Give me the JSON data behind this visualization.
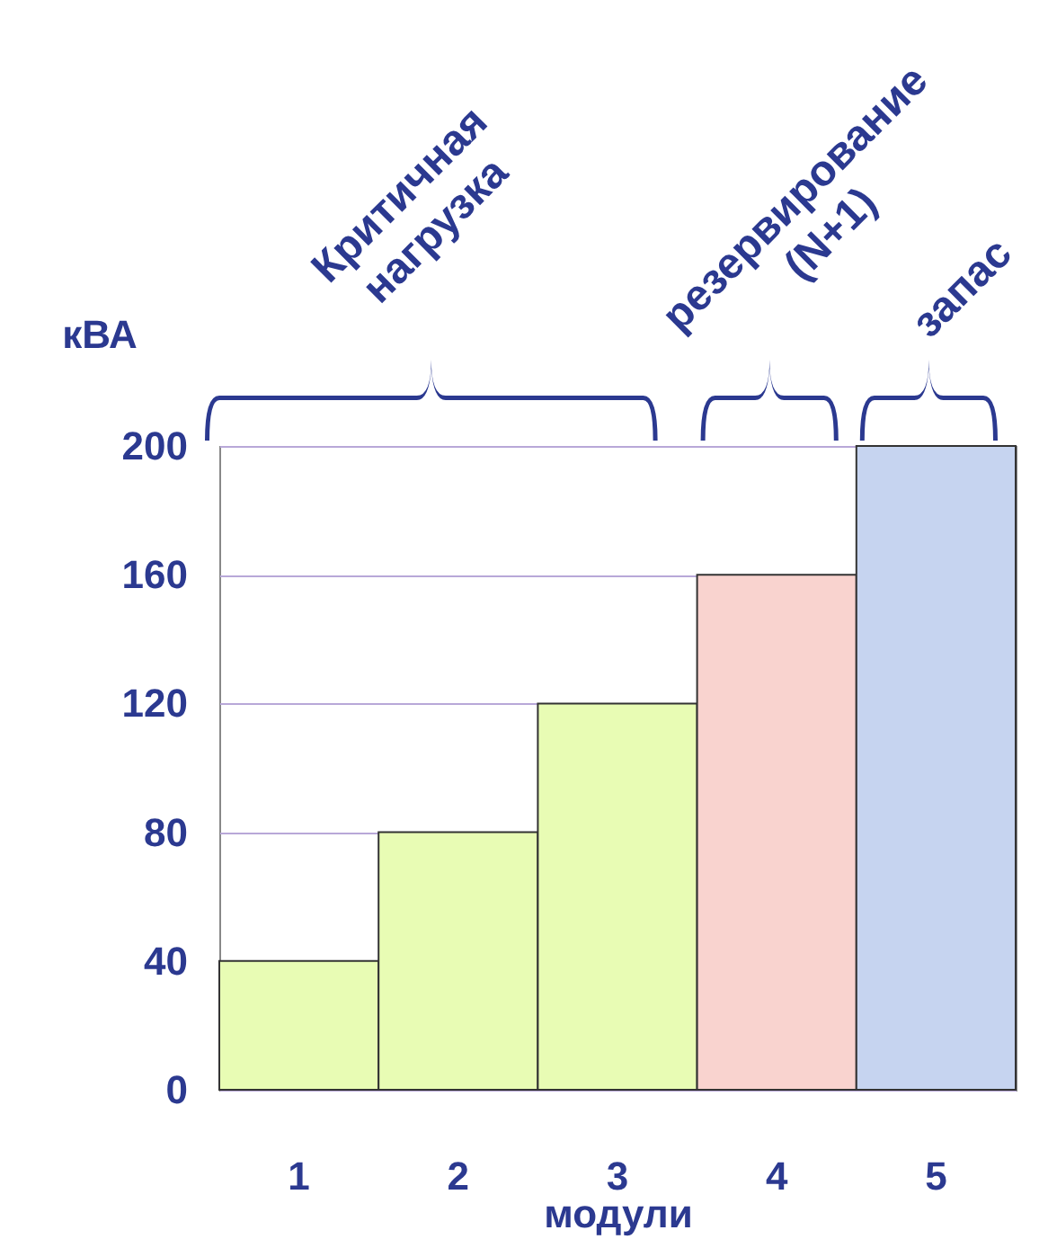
{
  "chart_data": {
    "type": "bar",
    "xlabel": "модули",
    "ylabel": "кВА",
    "categories": [
      "1",
      "2",
      "3",
      "4",
      "5"
    ],
    "values": [
      40,
      80,
      120,
      160,
      200
    ],
    "colors": [
      "#e8fcb4",
      "#e8fcb4",
      "#e8fcb4",
      "#f9d3cf",
      "#c6d4f0"
    ],
    "ylim": [
      0,
      200
    ],
    "yticks": [
      0,
      40,
      80,
      120,
      160,
      200
    ],
    "grid": "y",
    "annotations": [
      "Критичная нагрузка",
      "резервирование (N+1)",
      "запас"
    ]
  }
}
